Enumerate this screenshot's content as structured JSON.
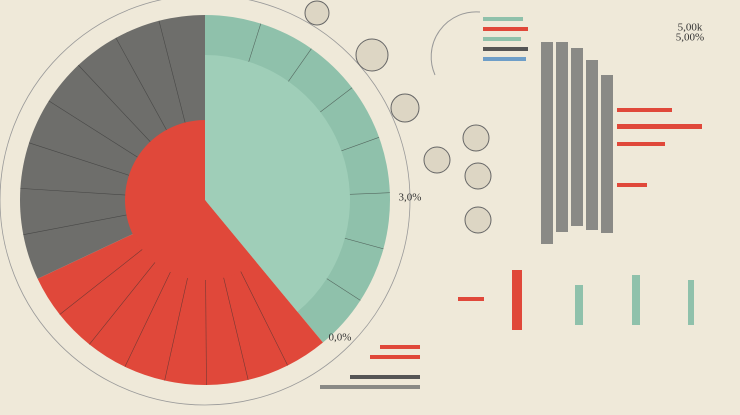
{
  "chart_data": {
    "type": "pie",
    "categories": [
      null,
      null,
      null
    ],
    "values": [
      39,
      29,
      32
    ],
    "colors": [
      "#8fc1ab",
      "#e0483a",
      "#6e6e6b"
    ],
    "annotations": [
      "3,0%",
      "0,0%",
      "5,00k",
      "5,00%"
    ]
  }
}
